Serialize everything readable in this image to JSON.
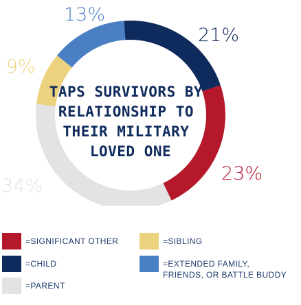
{
  "chart_data": {
    "type": "pie",
    "title_lines": [
      "TAPS SURVIVORS BY",
      "RELATIONSHIP TO",
      "THEIR MILITARY",
      "LOVED ONE"
    ],
    "slices": [
      {
        "name": "CHILD",
        "value": 21,
        "label": "21%",
        "color": "#0f2a5c"
      },
      {
        "name": "SIGNIFICANT OTHER",
        "value": 23,
        "label": "23%",
        "color": "#b5182a"
      },
      {
        "name": "PARENT",
        "value": 34,
        "label": "34%",
        "color": "#e3e3e3"
      },
      {
        "name": "SIBLING",
        "value": 9,
        "label": "9%",
        "color": "#ecd27f"
      },
      {
        "name": "EXTENDED FAMILY, FRIENDS, OR BATTLE BUDDY",
        "value": 13,
        "label": "13%",
        "color": "#4a7fc4"
      }
    ],
    "label_colors": {
      "CHILD": "#0f2a5c",
      "SIGNIFICANT OTHER": "#b5182a",
      "PARENT": "#e3e3e3",
      "SIBLING": "#ecd27f",
      "EXTENDED FAMILY, FRIENDS, OR BATTLE BUDDY": "#4a7fc4"
    }
  },
  "legend": {
    "significant_other": "=SIGNIFICANT OTHER",
    "sibling": "=SIBLING",
    "child": "=CHILD",
    "extended_line1": "=EXTENDED FAMILY,",
    "extended_line2": "FRIENDS, OR BATTLE BUDDY",
    "parent": "=PARENT"
  },
  "colors": {
    "significant_other": "#b5182a",
    "child": "#0f2a5c",
    "parent": "#e3e3e3",
    "sibling": "#ecd27f",
    "extended": "#4a7fc4"
  }
}
